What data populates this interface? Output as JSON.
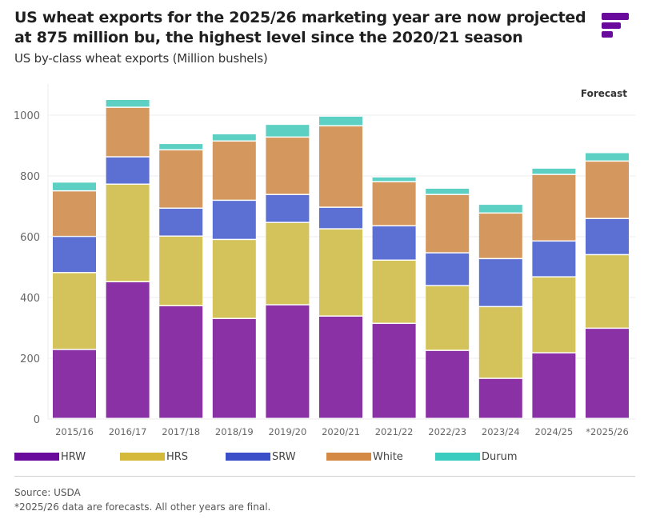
{
  "header": {
    "title": "US wheat exports for the 2025/26 marketing year are now projected at 875 million bu, the highest level since the 2020/21 season",
    "subtitle": "US by-class wheat exports (Million bushels)",
    "logo_icon": "brand-logo-icon"
  },
  "footer": {
    "source": "Source: USDA",
    "note": "*2025/26 data are forecasts. All other years are final."
  },
  "chart_data": {
    "type": "bar",
    "stacked": true,
    "title": "US by-class wheat exports (Million bushels)",
    "xlabel": "",
    "ylabel": "Million bushels",
    "ylim": [
      0,
      1100
    ],
    "yticks": [
      0,
      200,
      400,
      600,
      800,
      1000
    ],
    "grid": true,
    "legend_position": "bottom",
    "annotation": "Forecast",
    "categories": [
      "2015/16",
      "2016/17",
      "2017/18",
      "2018/19",
      "2019/20",
      "2020/21",
      "2021/22",
      "2022/23",
      "2023/24",
      "2024/25",
      "*2025/26"
    ],
    "series": [
      {
        "name": "HRW",
        "color": "#8a31a5",
        "legend_color": "#6a0a9c",
        "values": [
          227,
          450,
          371,
          329,
          374,
          337,
          313,
          224,
          132,
          216,
          297
        ]
      },
      {
        "name": "HRS",
        "color": "#d4c35a",
        "legend_color": "#d4b93a",
        "values": [
          253,
          321,
          229,
          260,
          271,
          287,
          208,
          213,
          236,
          250,
          242
        ]
      },
      {
        "name": "SRW",
        "color": "#5c70d4",
        "legend_color": "#3a4fc8",
        "values": [
          119,
          90,
          92,
          129,
          92,
          71,
          113,
          108,
          158,
          118,
          119
        ]
      },
      {
        "name": "White",
        "color": "#d4975e",
        "legend_color": "#d48a45",
        "values": [
          150,
          163,
          192,
          195,
          189,
          268,
          145,
          192,
          150,
          219,
          189
        ]
      },
      {
        "name": "Durum",
        "color": "#5dd0c4",
        "legend_color": "#3ccbbf",
        "values": [
          29,
          26,
          21,
          24,
          42,
          32,
          16,
          21,
          29,
          21,
          28
        ]
      }
    ],
    "totals": [
      778,
      1050,
      905,
      937,
      968,
      995,
      795,
      758,
      705,
      824,
      875
    ]
  }
}
